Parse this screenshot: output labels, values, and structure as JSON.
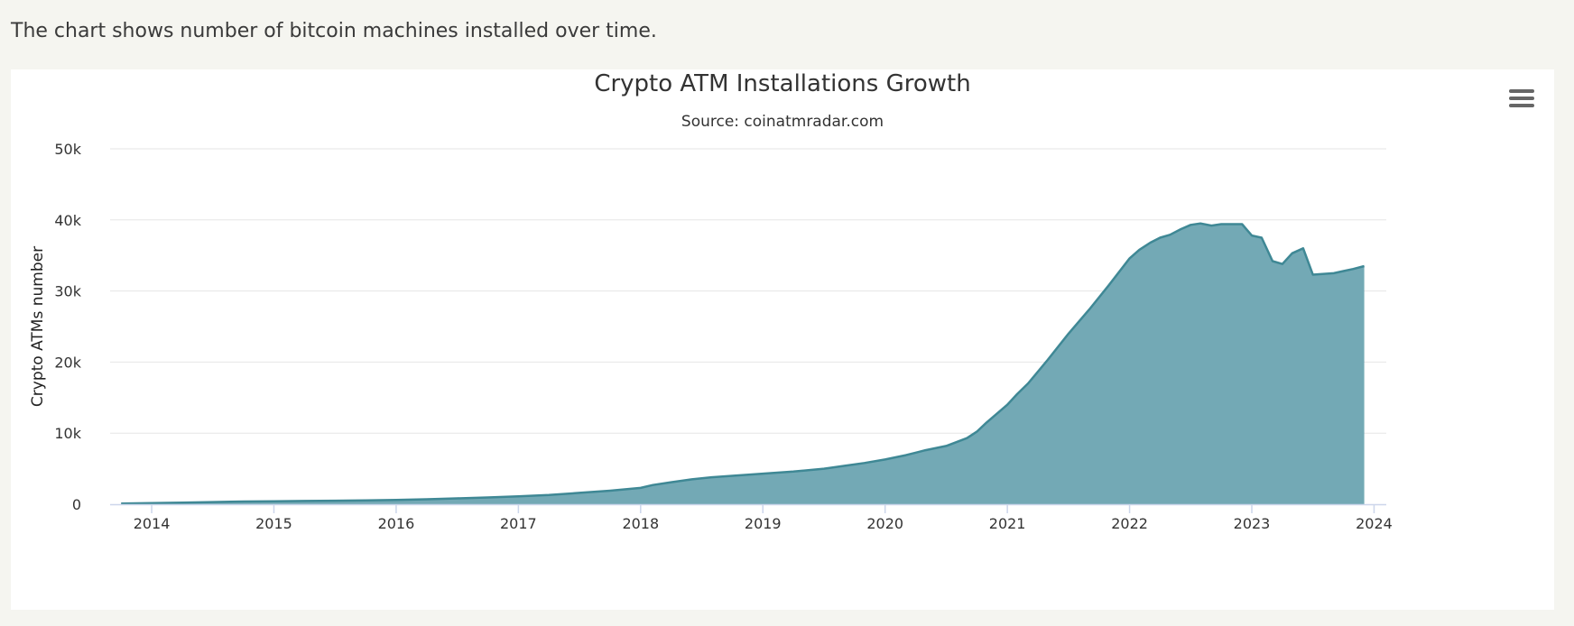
{
  "intro_text": "The chart shows number of bitcoin machines installed over time.",
  "chart_menu_icon": "hamburger-menu-icon",
  "colors": {
    "area_fill": "#73a9b5",
    "area_stroke": "#3f8895",
    "grid": "#e6e6e6",
    "text": "#333333"
  },
  "chart_data": {
    "type": "area",
    "title": "Crypto ATM Installations Growth",
    "subtitle": "Source: coinatmradar.com",
    "xlabel": "",
    "ylabel": "Crypto ATMs number",
    "ylim": [
      0,
      50000
    ],
    "xlim": [
      2013.66,
      2024.1
    ],
    "grid": true,
    "legend": "none",
    "y_ticks": [
      {
        "value": 0,
        "label": "0"
      },
      {
        "value": 10000,
        "label": "10k"
      },
      {
        "value": 20000,
        "label": "20k"
      },
      {
        "value": 30000,
        "label": "30k"
      },
      {
        "value": 40000,
        "label": "40k"
      },
      {
        "value": 50000,
        "label": "50k"
      }
    ],
    "x_ticks": [
      {
        "value": 2014,
        "label": "2014"
      },
      {
        "value": 2015,
        "label": "2015"
      },
      {
        "value": 2016,
        "label": "2016"
      },
      {
        "value": 2017,
        "label": "2017"
      },
      {
        "value": 2018,
        "label": "2018"
      },
      {
        "value": 2019,
        "label": "2019"
      },
      {
        "value": 2020,
        "label": "2020"
      },
      {
        "value": 2021,
        "label": "2021"
      },
      {
        "value": 2022,
        "label": "2022"
      },
      {
        "value": 2023,
        "label": "2023"
      },
      {
        "value": 2024,
        "label": "2024"
      }
    ],
    "series": [
      {
        "x": [
          2013.75,
          2014.0,
          2014.25,
          2014.5,
          2014.75,
          2015.0,
          2015.25,
          2015.5,
          2015.75,
          2016.0,
          2016.25,
          2016.5,
          2016.75,
          2017.0,
          2017.25,
          2017.5,
          2017.75,
          2018.0,
          2018.1,
          2018.25,
          2018.42,
          2018.58,
          2018.75,
          2019.0,
          2019.25,
          2019.5,
          2019.67,
          2019.83,
          2020.0,
          2020.17,
          2020.33,
          2020.5,
          2020.67,
          2020.75,
          2020.83,
          2021.0,
          2021.08,
          2021.17,
          2021.33,
          2021.5,
          2021.58,
          2021.67,
          2021.83,
          2022.0,
          2022.08,
          2022.17,
          2022.25,
          2022.33,
          2022.42,
          2022.5,
          2022.58,
          2022.67,
          2022.75,
          2022.83,
          2022.92,
          2023.0,
          2023.08,
          2023.17,
          2023.25,
          2023.33,
          2023.42,
          2023.5,
          2023.67,
          2023.75,
          2023.83,
          2023.92
        ],
        "y": [
          100,
          150,
          220,
          300,
          380,
          420,
          460,
          500,
          550,
          600,
          700,
          820,
          950,
          1100,
          1300,
          1600,
          1900,
          2300,
          2700,
          3100,
          3500,
          3800,
          4000,
          4300,
          4600,
          5000,
          5400,
          5800,
          6300,
          6900,
          7600,
          8200,
          9300,
          10200,
          11500,
          14000,
          15500,
          17000,
          20300,
          24000,
          25600,
          27400,
          30800,
          34600,
          35800,
          36800,
          37500,
          37900,
          38700,
          39300,
          39500,
          39200,
          39400,
          39400,
          39400,
          37800,
          37500,
          34200,
          33800,
          35300,
          36000,
          32300,
          32500,
          32800,
          33100,
          33500
        ]
      }
    ]
  }
}
